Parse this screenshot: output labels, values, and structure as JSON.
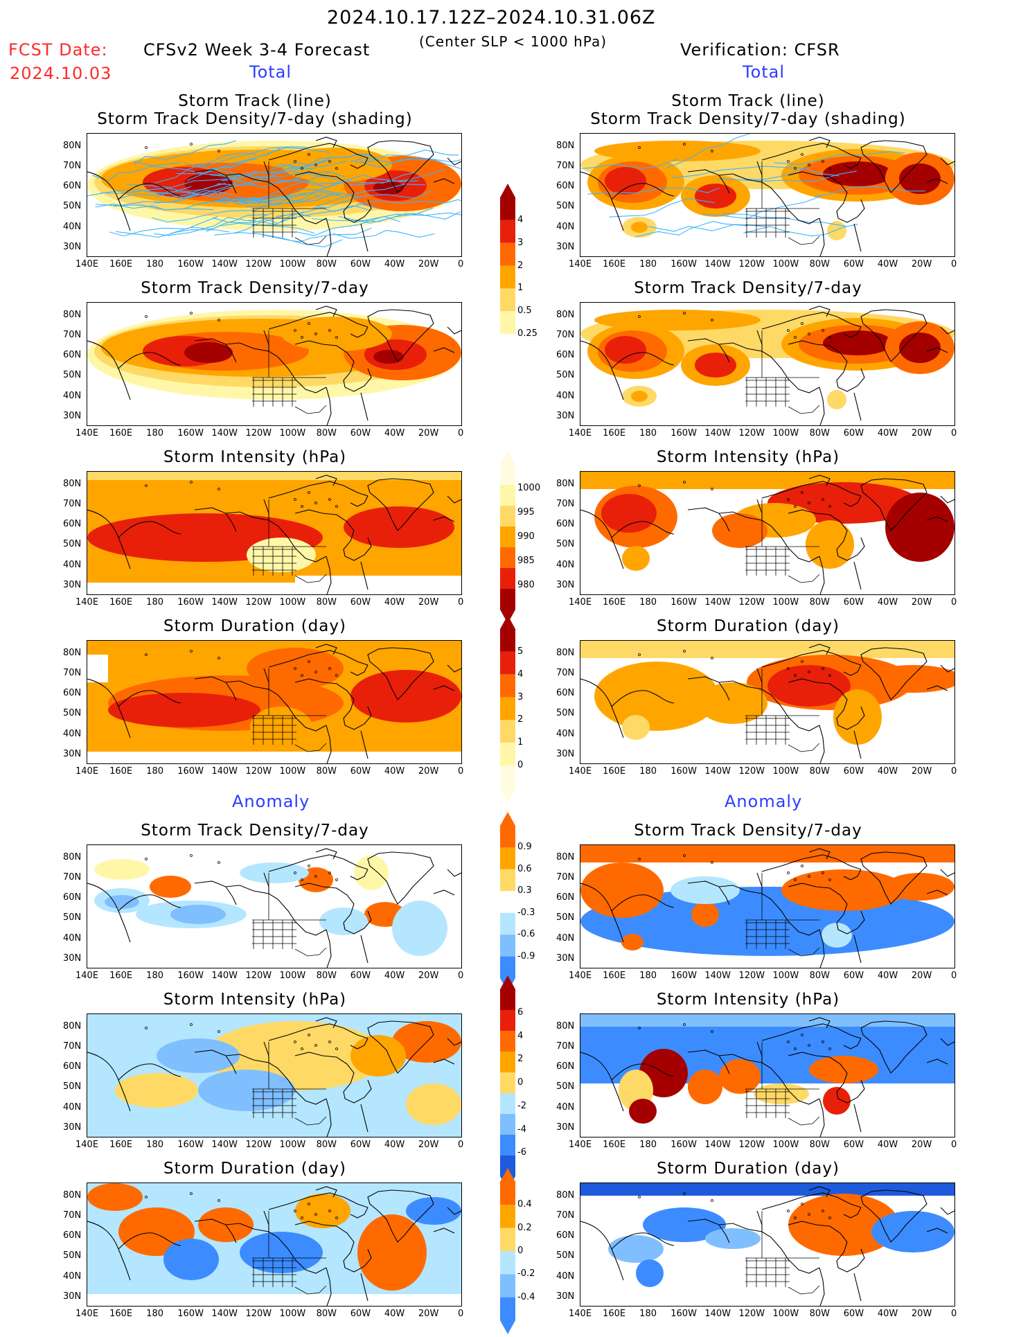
{
  "header": {
    "date_range": "2024.10.17.12Z–2024.10.31.06Z",
    "fcst_label": "FCST Date:",
    "fcst_date": "2024.10.03",
    "model_title": "CFSv2 Week 3-4 Forecast",
    "criterion": "(Center SLP < 1000 hPa)",
    "verification": "Verification: CFSR"
  },
  "sections": {
    "total": "Total",
    "anomaly": "Anomaly"
  },
  "panel_titles": {
    "track_line": "Storm Track (line)",
    "track_shading": "Storm Track Density/7-day (shading)",
    "density": "Storm Track Density/7-day",
    "intensity": "Storm Intensity (hPa)",
    "duration": "Storm Duration (day)"
  },
  "axes": {
    "lat_labels": [
      "80N",
      "70N",
      "60N",
      "50N",
      "40N",
      "30N"
    ],
    "lon_labels": [
      "140E",
      "160E",
      "180",
      "160W",
      "140W",
      "120W",
      "100W",
      "80W",
      "60W",
      "40W",
      "20W",
      "0"
    ]
  },
  "colorbars": {
    "density_total": [
      "4",
      "3",
      "2",
      "1",
      "0.5",
      "0.25"
    ],
    "intensity_total": [
      "1000",
      "995",
      "990",
      "985",
      "980"
    ],
    "duration_total": [
      "5",
      "4",
      "3",
      "2",
      "1",
      "0"
    ],
    "density_anom": [
      "0.9",
      "0.6",
      "0.3",
      "-0.3",
      "-0.6",
      "-0.9"
    ],
    "intensity_anom": [
      "6",
      "4",
      "2",
      "0",
      "-2",
      "-4",
      "-6"
    ],
    "duration_anom": [
      "0.4",
      "0.2",
      "0",
      "-0.2",
      "-0.4"
    ]
  },
  "colors": {
    "warm": [
      "#fff7a8",
      "#ffd966",
      "#ffa500",
      "#ff6a00",
      "#e8200a",
      "#a50000"
    ],
    "cool": [
      "#b4e6ff",
      "#7fbfff",
      "#3c8cff",
      "#1e5adc"
    ],
    "track_line": "#3cb4ff",
    "header_red": "#ff2a2a",
    "header_blue": "#2a3cff"
  }
}
